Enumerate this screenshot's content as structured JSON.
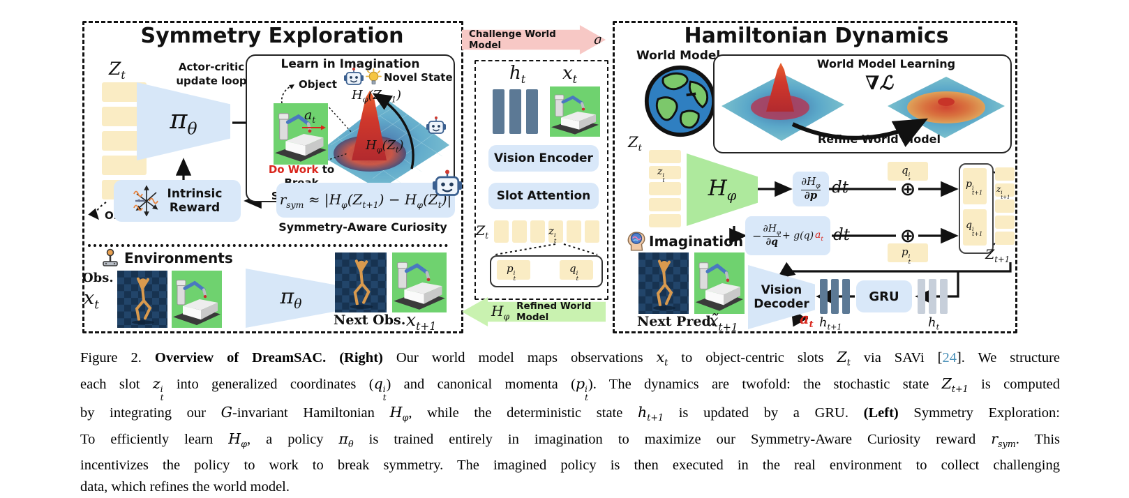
{
  "colors": {
    "slot_yellow": "#faecc4",
    "box_blue": "#d9e8f9",
    "trap_blue": "#d7e7f8",
    "trap_green": "#aee99d",
    "arrow_pink": "#f7c8c5",
    "arrow_green": "#c9f2b0",
    "bar_dark": "#5c7995",
    "bar_light": "#c7cfda",
    "accent_red": "#d9261c",
    "cite_link": "#4a90b8"
  },
  "left": {
    "title": "Symmetry Exploration",
    "zt": "Z_{t}",
    "object_slots": "Object slots",
    "actor_critic_1": "Actor-critic",
    "actor_critic_2": "update loop",
    "pi": "π_{θ}",
    "imagination_box": {
      "title": "Learn in Imagination",
      "object": "Object",
      "at": "a_{t}",
      "do_work": "Do Work",
      "do_work_rest": " to",
      "break_symmetry": "Break Symmetry",
      "novel_state": "Novel State",
      "h_zt1": "H_{φ}(Z_{t+1})",
      "h_zt": "H_{φ}(Z_{t})"
    },
    "intrinsic_1": "Intrinsic",
    "intrinsic_2": "Reward",
    "reward_formula": "r_{sym} ≈ |H_{φ}(Z_{t+1}) − H_{φ}(Z_{t})|",
    "curiosity": "Symmetry-Aware Curiosity",
    "environments": "Environments",
    "obs": "Obs.",
    "xt": "x_{t}",
    "pi2": "π_{θ}",
    "next_obs": "Next Obs.",
    "xt1": "x_{t+1}"
  },
  "middle": {
    "challenge": "Challenge World Model",
    "at": "a_{t}",
    "ht": "h_{t}",
    "xt": "x_{t}",
    "vision_encoder": "Vision Encoder",
    "slot_attention": "Slot Attention",
    "zt": "Z_{t}",
    "zti": "z^{i}_{t}",
    "pti": "p^{i}_{t}",
    "qti": "q^{i}_{t}",
    "hphi": "H_{φ}",
    "refined": "Refined World Model"
  },
  "right": {
    "title": "Hamiltonian Dynamics",
    "world_model": "World Model",
    "wml_title": "World Model Learning",
    "grad_loss": "∇ℒ",
    "refine": "Refine World Model",
    "zt": "Z_{t}",
    "zti": "z^{i}_{t}",
    "hphi": "H_{φ}",
    "eq1_num": "∂H_{φ}",
    "eq1_den": "∂p",
    "dt1": "dt",
    "eq2_minus": "−",
    "eq2_num": "∂H_{φ}",
    "eq2_den": "∂q",
    "eq2_plus": "+ g(q)",
    "eq2_at": "a_{t}",
    "dt2": "dt",
    "qti": "q^{i}_{t}",
    "pti": "p^{i}_{t}",
    "pt1i": "p^{i}_{t+1}",
    "qt1i": "q^{i}_{t+1}",
    "zt1i": "z^{i}_{t+1}",
    "Zt1": "Z_{t+1}",
    "imagination": "Imagination",
    "next_pred": "Next Pred.",
    "xtilde": "x̃_{t+1}",
    "vision_decoder_1": "Vision",
    "vision_decoder_2": "Decoder",
    "at_red": "a_{t}",
    "ht1": "h_{t+1}",
    "gru": "GRU",
    "ht": "h_{t}"
  },
  "caption": {
    "lines": [
      [
        {
          "t": "Figure 2. "
        },
        {
          "t": "Overview of DreamSAC. (Right)",
          "c": "b"
        },
        {
          "t": " Our world model maps observations "
        },
        {
          "t": "x_{t}",
          "c": "m"
        },
        {
          "t": " to object-centric slots "
        },
        {
          "t": "Z_{t}",
          "c": "m"
        },
        {
          "t": " via SAVi ["
        },
        {
          "t": "24",
          "c": "l"
        },
        {
          "t": "]. We structure"
        }
      ],
      [
        {
          "t": "each slot "
        },
        {
          "t": "z^{i}_{t}",
          "c": "m"
        },
        {
          "t": " into generalized coordinates ("
        },
        {
          "t": "q^{i}_{t}",
          "c": "m"
        },
        {
          "t": ") and canonical momenta ("
        },
        {
          "t": "p^{i}_{t}",
          "c": "m"
        },
        {
          "t": "). The dynamics are twofold: the stochastic state "
        },
        {
          "t": "Z_{t+1}",
          "c": "m"
        },
        {
          "t": " is computed"
        }
      ],
      [
        {
          "t": "by integrating our "
        },
        {
          "t": "G",
          "c": "m"
        },
        {
          "t": "-invariant Hamiltonian "
        },
        {
          "t": "H_{φ}",
          "c": "m"
        },
        {
          "t": ", while the deterministic state "
        },
        {
          "t": "h_{t+1}",
          "c": "m"
        },
        {
          "t": " is updated by a GRU. "
        },
        {
          "t": "(Left)",
          "c": "b"
        },
        {
          "t": " Symmetry Exploration:"
        }
      ],
      [
        {
          "t": "To efficiently learn "
        },
        {
          "t": "H_{φ}",
          "c": "m"
        },
        {
          "t": ", a policy "
        },
        {
          "t": "π_{θ}",
          "c": "m"
        },
        {
          "t": " is trained entirely in imagination to maximize our Symmetry-Aware Curiosity reward "
        },
        {
          "t": "r_{sym}",
          "c": "m"
        },
        {
          "t": ". This"
        }
      ],
      [
        {
          "t": "incentivizes the policy to work to break symmetry. The imagined policy is then executed in the real environment to collect challenging"
        }
      ],
      [
        {
          "t": "data, which refines the world model."
        }
      ]
    ]
  }
}
